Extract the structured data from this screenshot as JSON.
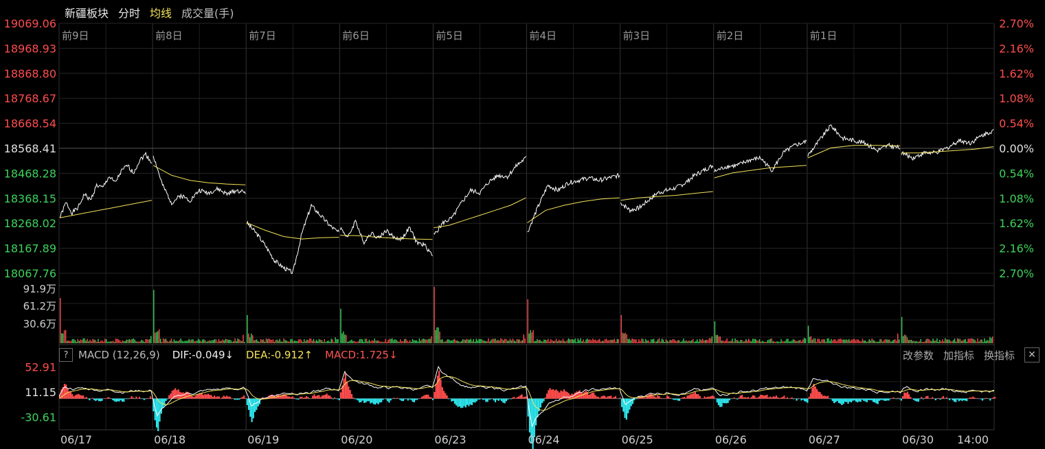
{
  "header": {
    "board_name": "新疆板块",
    "tab_time": "分时",
    "tab_avg": "均线",
    "tab_volume": "成交量(手)"
  },
  "macd_panel": {
    "help_label": "?",
    "title": "MACD (12,26,9)",
    "dif": "DIF:-0.049↓",
    "dea": "DEA:-0.912↑",
    "macd": "MACD:1.725↓",
    "btn_change_params": "改参数",
    "btn_add_indicator": "加指标",
    "btn_switch_indicator": "换指标",
    "btn_close": "✕"
  },
  "colors": {
    "background": "#000000",
    "grid": "#2a2a2a",
    "price_line": "#ffffff",
    "avg_line": "#f5e35a",
    "up": "#ff4d4d",
    "down": "#3dd35b",
    "macd_neg": "#2ee6ee",
    "axis_flat": "#e0e0e0"
  },
  "chart_data": {
    "type": "line",
    "title": "新疆板块 分时",
    "day_labels_top": [
      "前9日",
      "前8日",
      "前7日",
      "前6日",
      "前5日",
      "前4日",
      "前3日",
      "前2日",
      "前1日"
    ],
    "x_date_labels": [
      "06/17",
      "06/18",
      "06/19",
      "06/20",
      "06/23",
      "06/24",
      "06/25",
      "06/26",
      "06/27",
      "06/30",
      "14:00"
    ],
    "price_axis": {
      "ticks": [
        "19069.06",
        "18968.93",
        "18868.80",
        "18768.67",
        "18668.54",
        "18568.41",
        "18468.28",
        "18368.15",
        "18268.02",
        "18167.89",
        "18067.76"
      ],
      "ylim": [
        18067.76,
        19069.06
      ],
      "prev_close": 18568.41
    },
    "pct_axis": {
      "ticks": [
        "2.70%",
        "2.16%",
        "1.62%",
        "1.08%",
        "0.54%",
        "0.00%",
        "0.54%",
        "1.08%",
        "1.62%",
        "2.16%",
        "2.70%"
      ]
    },
    "series": [
      {
        "name": "price",
        "days": [
          [
            18290,
            18350,
            18310,
            18330,
            18385,
            18360,
            18420,
            18410,
            18455,
            18430,
            18475,
            18500,
            18470,
            18520,
            18545,
            18510
          ],
          [
            18540,
            18420,
            18350,
            18380,
            18360,
            18400,
            18390,
            18405,
            18385,
            18400,
            18392
          ],
          [
            18270,
            18230,
            18180,
            18120,
            18090,
            18070,
            18230,
            18340,
            18300,
            18260,
            18230
          ],
          [
            18250,
            18210,
            18280,
            18190,
            18230,
            18210,
            18240,
            18210,
            18205,
            18250,
            18190,
            18180,
            18140
          ],
          [
            18220,
            18270,
            18290,
            18350,
            18400,
            18390,
            18435,
            18460,
            18455,
            18500,
            18530
          ],
          [
            18230,
            18330,
            18420,
            18400,
            18430,
            18440,
            18450,
            18440,
            18450,
            18460
          ],
          [
            18350,
            18320,
            18330,
            18360,
            18390,
            18400,
            18410,
            18430,
            18460,
            18480,
            18500
          ],
          [
            18475,
            18495,
            18500,
            18520,
            18530,
            18480,
            18550,
            18580,
            18595
          ],
          [
            18540,
            18600,
            18660,
            18610,
            18600,
            18590,
            18560,
            18580,
            18570
          ],
          [
            18550,
            18530,
            18550,
            18550,
            18570,
            18600,
            18590,
            18620,
            18640
          ]
        ]
      },
      {
        "name": "average",
        "days": [
          [
            18290,
            18300,
            18310,
            18320,
            18330,
            18340,
            18350,
            18360
          ],
          [
            18500,
            18460,
            18440,
            18430,
            18425,
            18422
          ],
          [
            18270,
            18240,
            18215,
            18205,
            18210,
            18212
          ],
          [
            18220,
            18218,
            18212,
            18208,
            18205,
            18203
          ],
          [
            18250,
            18260,
            18280,
            18300,
            18320,
            18340,
            18370
          ],
          [
            18270,
            18320,
            18340,
            18355,
            18365,
            18370
          ],
          [
            18360,
            18370,
            18375,
            18380,
            18388,
            18395
          ],
          [
            18450,
            18470,
            18480,
            18490,
            18495,
            18500
          ],
          [
            18530,
            18570,
            18580,
            18580,
            18578
          ],
          [
            18550,
            18550,
            18555,
            18560,
            18565,
            18575
          ]
        ]
      }
    ],
    "volume": {
      "ticks": [
        "91.9万",
        "61.2万",
        "30.6万"
      ],
      "ylim": [
        0,
        91.9
      ],
      "open_spikes": [
        72,
        85,
        45,
        55,
        90,
        70,
        45,
        35,
        28,
        42
      ]
    },
    "macd": {
      "ticks": [
        "52.91",
        "11.15",
        "-30.61"
      ],
      "ylim": [
        -52,
        58
      ]
    }
  }
}
